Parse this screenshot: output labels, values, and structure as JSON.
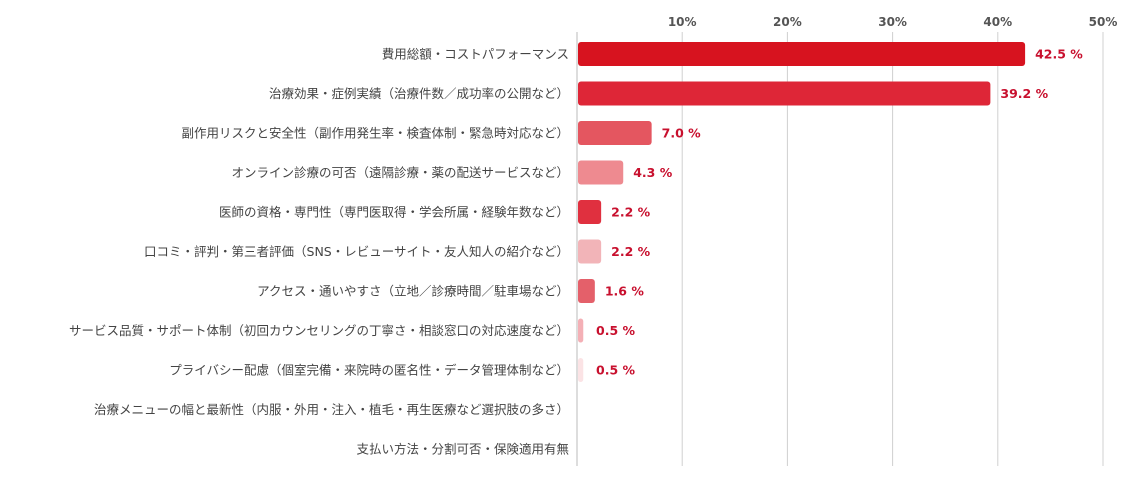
{
  "chart_data": {
    "type": "bar",
    "orientation": "horizontal",
    "categories": [
      "費用総額・コストパフォーマンス",
      "治療効果・症例実績（治療件数／成功率の公開など）",
      "副作用リスクと安全性（副作用発生率・検査体制・緊急時対応など）",
      "オンライン診療の可否（遠隔診療・薬の配送サービスなど）",
      "医師の資格・専門性（専門医取得・学会所属・経験年数など）",
      "口コミ・評判・第三者評価（SNS・レビューサイト・友人知人の紹介など）",
      "アクセス・通いやすさ（立地／診療時間／駐車場など）",
      "サービス品質・サポート体制（初回カウンセリングの丁寧さ・相談窓口の対応速度など）",
      "プライバシー配慮（個室完備・来院時の匿名性・データ管理体制など）",
      "治療メニューの幅と最新性（内服・外用・注入・植毛・再生医療など選択肢の多さ）",
      "支払い方法・分割可否・保険適用有無"
    ],
    "values": [
      42.5,
      39.2,
      7.0,
      4.3,
      2.2,
      2.2,
      1.6,
      0.5,
      0.5,
      0,
      0
    ],
    "value_labels": [
      "42.5 %",
      "39.2 %",
      "7.0 %",
      "4.3 %",
      "2.2 %",
      "2.2 %",
      "1.6 %",
      "0.5 %",
      "0.5 %",
      "",
      ""
    ],
    "bar_colors": [
      "#d7131f",
      "#de2637",
      "#e45660",
      "#ee8a90",
      "#e0303f",
      "#f2b4b8",
      "#e4606a",
      "#f4b0b6",
      "#fbe3e5",
      "#ffffff",
      "#ffffff"
    ],
    "xlim": [
      0,
      50
    ],
    "x_ticks": [
      "10%",
      "20%",
      "30%",
      "40%",
      "50%"
    ],
    "x_tick_values": [
      10,
      20,
      30,
      40,
      50
    ],
    "grid": true,
    "label_color": "#c8102e"
  }
}
